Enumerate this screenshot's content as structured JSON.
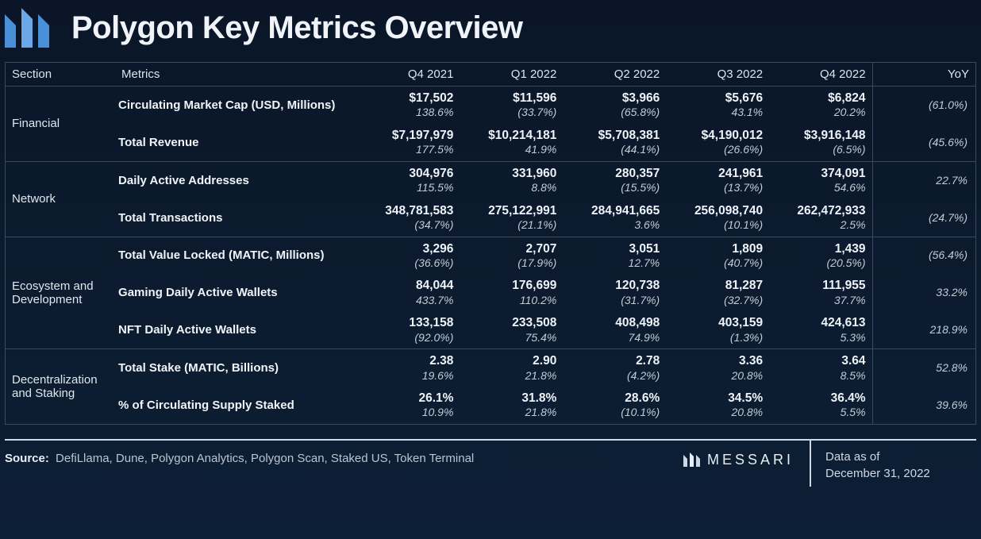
{
  "title": "Polygon Key Metrics Overview",
  "columns": [
    "Section",
    "Metrics",
    "Q4 2021",
    "Q1 2022",
    "Q2 2022",
    "Q3 2022",
    "Q4 2022",
    "YoY"
  ],
  "sections": [
    {
      "name": "Financial",
      "metrics": [
        {
          "label": "Circulating Market Cap (USD, Millions)",
          "values": [
            "$17,502",
            "$11,596",
            "$3,966",
            "$5,676",
            "$6,824"
          ],
          "subs": [
            "138.6%",
            "(33.7%)",
            "(65.8%)",
            "43.1%",
            "20.2%"
          ],
          "yoy": "(61.0%)"
        },
        {
          "label": "Total Revenue",
          "values": [
            "$7,197,979",
            "$10,214,181",
            "$5,708,381",
            "$4,190,012",
            "$3,916,148"
          ],
          "subs": [
            "177.5%",
            "41.9%",
            "(44.1%)",
            "(26.6%)",
            "(6.5%)"
          ],
          "yoy": "(45.6%)"
        }
      ]
    },
    {
      "name": "Network",
      "metrics": [
        {
          "label": "Daily Active Addresses",
          "values": [
            "304,976",
            "331,960",
            "280,357",
            "241,961",
            "374,091"
          ],
          "subs": [
            "115.5%",
            "8.8%",
            "(15.5%)",
            "(13.7%)",
            "54.6%"
          ],
          "yoy": "22.7%"
        },
        {
          "label": "Total Transactions",
          "values": [
            "348,781,583",
            "275,122,991",
            "284,941,665",
            "256,098,740",
            "262,472,933"
          ],
          "subs": [
            "(34.7%)",
            "(21.1%)",
            "3.6%",
            "(10.1%)",
            "2.5%"
          ],
          "yoy": "(24.7%)"
        }
      ]
    },
    {
      "name": "Ecosystem and Development",
      "metrics": [
        {
          "label": "Total Value Locked (MATIC, Millions)",
          "values": [
            "3,296",
            "2,707",
            "3,051",
            "1,809",
            "1,439"
          ],
          "subs": [
            "(36.6%)",
            "(17.9%)",
            "12.7%",
            "(40.7%)",
            "(20.5%)"
          ],
          "yoy": "(56.4%)"
        },
        {
          "label": "Gaming Daily Active Wallets",
          "values": [
            "84,044",
            "176,699",
            "120,738",
            "81,287",
            "111,955"
          ],
          "subs": [
            "433.7%",
            "110.2%",
            "(31.7%)",
            "(32.7%)",
            "37.7%"
          ],
          "yoy": "33.2%"
        },
        {
          "label": "NFT Daily Active Wallets",
          "values": [
            "133,158",
            "233,508",
            "408,498",
            "403,159",
            "424,613"
          ],
          "subs": [
            "(92.0%)",
            "75.4%",
            "74.9%",
            "(1.3%)",
            "5.3%"
          ],
          "yoy": "218.9%"
        }
      ]
    },
    {
      "name": "Decentralization and Staking",
      "metrics": [
        {
          "label": "Total Stake (MATIC, Billions)",
          "values": [
            "2.38",
            "2.90",
            "2.78",
            "3.36",
            "3.64"
          ],
          "subs": [
            "19.6%",
            "21.8%",
            "(4.2%)",
            "20.8%",
            "8.5%"
          ],
          "yoy": "52.8%"
        },
        {
          "label": "% of Circulating Supply Staked",
          "values": [
            "26.1%",
            "31.8%",
            "28.6%",
            "34.5%",
            "36.4%"
          ],
          "subs": [
            "10.9%",
            "21.8%",
            "(10.1%)",
            "20.8%",
            "5.5%"
          ],
          "yoy": "39.6%"
        }
      ]
    }
  ],
  "footer": {
    "source_label": "Source:",
    "source_text": "DefiLlama, Dune, Polygon Analytics, Polygon Scan, Staked US, Token Terminal",
    "brand": "MESSARI",
    "asof_label": "Data as of",
    "asof_date": "December 31, 2022"
  },
  "style": {
    "background_gradient": [
      "#0a1628",
      "#0d1f35"
    ],
    "border_color": "#3a4a5c",
    "text_primary": "#e8eef5",
    "text_muted": "#c2ccd7",
    "title_fontsize": 40,
    "header_fontsize": 15,
    "value_fontsize": 15.5,
    "sub_fontsize": 14
  }
}
